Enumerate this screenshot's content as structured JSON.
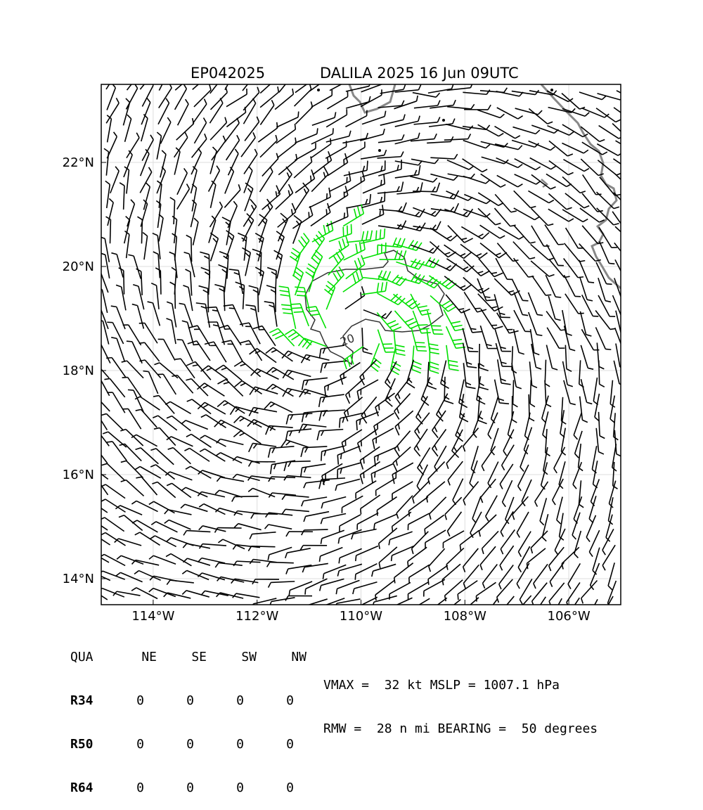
{
  "title": {
    "storm_id": "EP042025",
    "storm_time": "DALILA 2025 16 Jun 09UTC"
  },
  "map": {
    "lon_range": [
      -115.0,
      -105.0
    ],
    "lat_range": [
      13.5,
      23.5
    ],
    "lon_ticks": [
      {
        "value": -114,
        "label": "114°W"
      },
      {
        "value": -112,
        "label": "112°W"
      },
      {
        "value": -110,
        "label": "110°W"
      },
      {
        "value": -108,
        "label": "108°W"
      },
      {
        "value": -106,
        "label": "106°W"
      }
    ],
    "lat_ticks": [
      {
        "value": 14,
        "label": "14°N"
      },
      {
        "value": 16,
        "label": "16°N"
      },
      {
        "value": 18,
        "label": "18°N"
      },
      {
        "value": 20,
        "label": "20°N"
      },
      {
        "value": 22,
        "label": "22°N"
      }
    ],
    "grid": true,
    "center": {
      "lon": -110.2,
      "lat": 18.9
    },
    "contour_label": "20",
    "colors": {
      "barb": "#000000",
      "barb_strong": "#00e000",
      "coast": "#888888",
      "grid": "#dddddd"
    }
  },
  "quadrants": {
    "headers": [
      "QUA",
      "NE",
      "SE",
      "SW",
      "NW"
    ],
    "rows": [
      {
        "label": "R34",
        "values": [
          "0",
          "0",
          "0",
          "0"
        ]
      },
      {
        "label": "R50",
        "values": [
          "0",
          "0",
          "0",
          "0"
        ]
      },
      {
        "label": "R64",
        "values": [
          "0",
          "0",
          "0",
          "0"
        ]
      }
    ]
  },
  "stats": {
    "line1": "VMAX =  32 kt MSLP = 1007.1 hPa",
    "line2": "RMW =  28 n mi BEARING =  50 degrees"
  }
}
